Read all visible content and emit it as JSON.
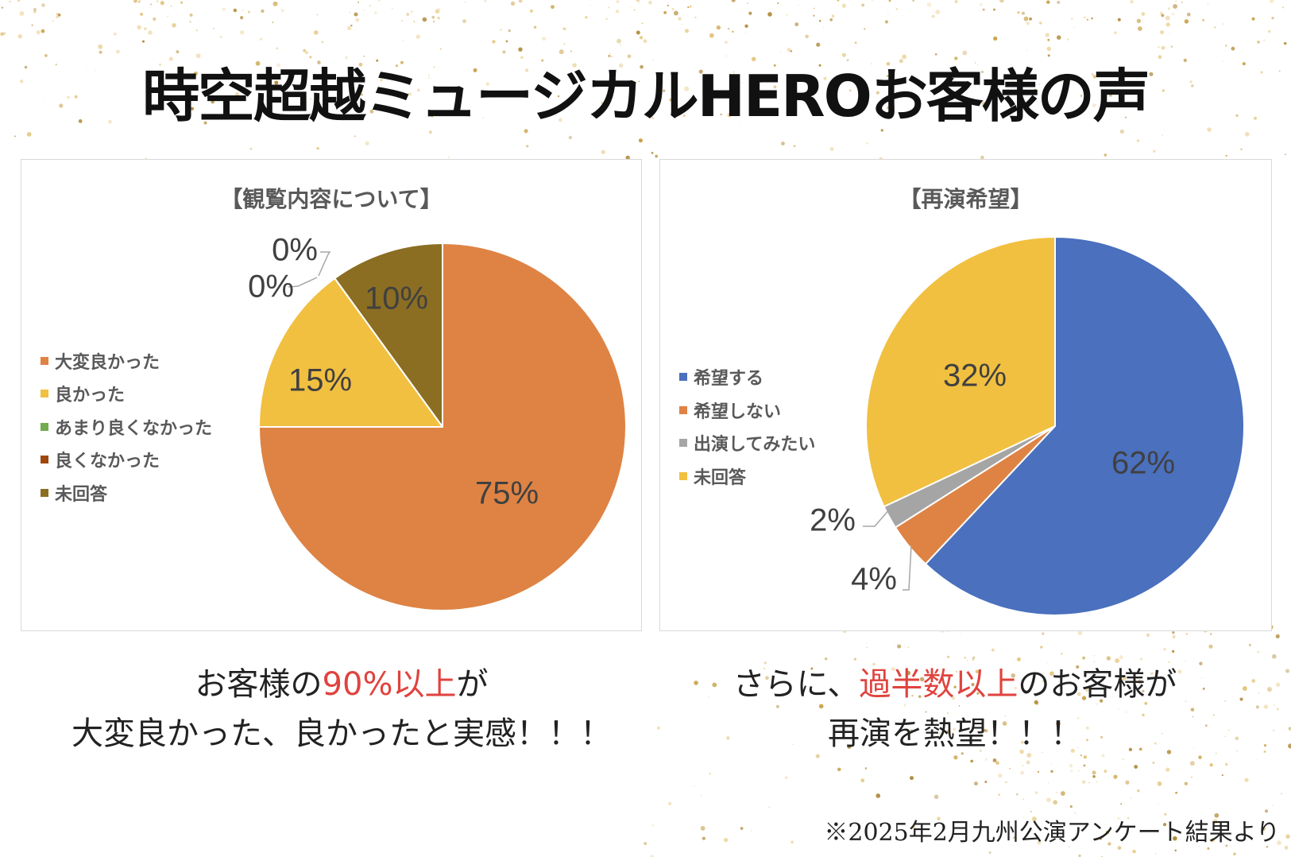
{
  "title": "時空超越ミュージカルHEROお客様の声",
  "chart_data": [
    {
      "type": "pie",
      "title": "【観覧内容について】",
      "categories": [
        "大変良かった",
        "良かった",
        "あまり良くなかった",
        "良くなかった",
        "未回答"
      ],
      "values": [
        75,
        15,
        0,
        0,
        10
      ],
      "labels": [
        "75%",
        "15%",
        "0%",
        "0%",
        "10%"
      ],
      "colors": [
        "#DE8344",
        "#F1C040",
        "#72AC4D",
        "#9E480E",
        "#8B6E22"
      ],
      "legend": "left"
    },
    {
      "type": "pie",
      "title": "【再演希望】",
      "categories": [
        "希望する",
        "希望しない",
        "出演してみたい",
        "未回答"
      ],
      "values": [
        62,
        4,
        2,
        32
      ],
      "labels": [
        "62%",
        "4%",
        "2%",
        "32%"
      ],
      "colors": [
        "#4A70BE",
        "#DE8344",
        "#A5A5A5",
        "#F1C040"
      ],
      "legend": "left"
    }
  ],
  "messages": {
    "left": {
      "pre": "お客様の",
      "highlight": "90%以上",
      "post": "が",
      "line2": "大変良かった、良かったと実感！！！"
    },
    "right": {
      "pre": "さらに、",
      "highlight": "過半数以上",
      "post": "のお客様が",
      "line2": "再演を熱望！！！"
    },
    "accent": "#E0433E"
  },
  "footnote": "※2025年2月九州公演アンケート結果より"
}
